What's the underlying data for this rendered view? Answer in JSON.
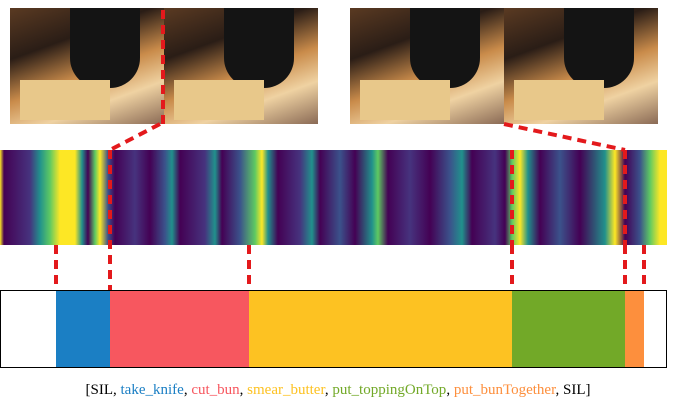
{
  "transcript": {
    "open": "[",
    "separator": ", ",
    "close": "]",
    "items": [
      "SIL",
      "take_knife",
      "cut_bun",
      "smear_butter",
      "put_toppingOnTop",
      "put_bunTogether",
      "SIL"
    ]
  }
}
